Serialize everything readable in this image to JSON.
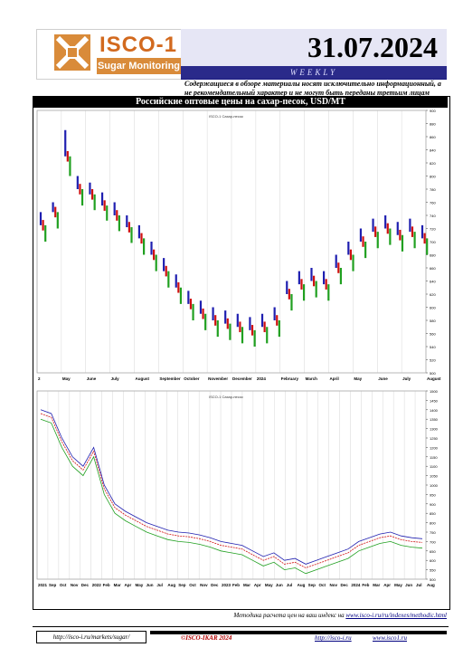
{
  "header": {
    "logo_text": "ISCO-1",
    "logo_sub": "Sugar Monitoring",
    "date": "31.07.2024",
    "weekly": "WEEKLY",
    "disclaimer": "Содержащиеся в обзоре материалы носят исключительно информационный, а не рекомендательный характер и не могут быть переданы третьим лицам"
  },
  "colors": {
    "high": "#1f1fb0",
    "mid": "#d01010",
    "low": "#20a020",
    "frame": "#000000"
  },
  "chart_data": [
    {
      "type": "candlestick",
      "title": "Российские оптовые цены на сахар-песок, USD/MT",
      "subtitle": "ISCO-1 Сахар-песок",
      "x_ticks": [
        "2",
        "May",
        "June",
        "July",
        "August",
        "September",
        "October",
        "November",
        "December",
        "2024",
        "February",
        "March",
        "April",
        "May",
        "June",
        "July",
        "August"
      ],
      "y_ticks": [
        "900",
        "880",
        "860",
        "840",
        "820",
        "800",
        "780",
        "760",
        "740",
        "720",
        "700",
        "680",
        "660",
        "640",
        "620",
        "600",
        "580",
        "560",
        "540",
        "520",
        "500"
      ],
      "ylim": [
        500,
        900
      ],
      "series": [
        {
          "name": "high",
          "values": [
            745,
            760,
            870,
            800,
            790,
            775,
            760,
            740,
            725,
            700,
            675,
            650,
            625,
            610,
            600,
            595,
            590,
            585,
            590,
            600,
            640,
            655,
            660,
            655,
            680,
            700,
            720,
            735,
            740,
            730,
            735,
            725
          ]
        },
        {
          "name": "mid",
          "values": [
            725,
            745,
            830,
            780,
            772,
            755,
            740,
            722,
            705,
            680,
            655,
            630,
            605,
            590,
            580,
            575,
            570,
            565,
            570,
            580,
            620,
            635,
            640,
            635,
            660,
            680,
            700,
            715,
            720,
            710,
            715,
            705
          ]
        },
        {
          "name": "low",
          "values": [
            700,
            720,
            800,
            755,
            748,
            732,
            716,
            698,
            680,
            655,
            630,
            605,
            580,
            565,
            555,
            550,
            545,
            540,
            545,
            555,
            595,
            610,
            615,
            610,
            635,
            655,
            675,
            690,
            695,
            685,
            690,
            680
          ]
        }
      ]
    },
    {
      "type": "line",
      "subtitle": "ISCO-1 Сахар-песок",
      "x_ticks": [
        "2021",
        "Sep",
        "Oct",
        "Nov",
        "Dec",
        "2022",
        "Feb",
        "Mar",
        "Apr",
        "May",
        "Jun",
        "Jul",
        "Aug",
        "Sep",
        "Oct",
        "Nov",
        "Dec",
        "2023",
        "Feb",
        "Mar",
        "Apr",
        "May",
        "Jun",
        "Jul",
        "Aug",
        "Sep",
        "Oct",
        "Nov",
        "Dec",
        "2024",
        "Feb",
        "Mar",
        "Apr",
        "May",
        "Jun",
        "Jul",
        "Aug"
      ],
      "y_ticks": [
        "1500",
        "1450",
        "1400",
        "1350",
        "1300",
        "1250",
        "1200",
        "1150",
        "1100",
        "1050",
        "1000",
        "950",
        "900",
        "850",
        "800",
        "750",
        "700",
        "650",
        "600",
        "550",
        "500"
      ],
      "ylim": [
        500,
        1500
      ],
      "series": [
        {
          "name": "high",
          "values": [
            1400,
            1380,
            1250,
            1150,
            1100,
            1200,
            1000,
            900,
            860,
            830,
            800,
            780,
            760,
            750,
            745,
            735,
            720,
            700,
            690,
            680,
            650,
            620,
            640,
            600,
            610,
            580,
            600,
            620,
            640,
            660,
            700,
            720,
            740,
            750,
            730,
            720,
            715
          ]
        },
        {
          "name": "mid",
          "values": [
            1380,
            1360,
            1230,
            1130,
            1080,
            1180,
            980,
            880,
            840,
            810,
            780,
            760,
            740,
            730,
            725,
            715,
            700,
            680,
            670,
            660,
            630,
            600,
            620,
            580,
            590,
            560,
            580,
            600,
            620,
            640,
            680,
            700,
            720,
            730,
            710,
            700,
            695
          ]
        },
        {
          "name": "low",
          "values": [
            1350,
            1330,
            1200,
            1100,
            1050,
            1150,
            950,
            850,
            810,
            780,
            750,
            730,
            710,
            700,
            695,
            685,
            670,
            650,
            640,
            630,
            600,
            570,
            590,
            550,
            560,
            530,
            550,
            570,
            590,
            610,
            650,
            670,
            690,
            700,
            680,
            670,
            665
          ]
        }
      ]
    }
  ],
  "footnote": {
    "text": "Методика расчета цен на ваш индекс на",
    "link": "www.isco-i.ru/ru/indexes/methodic.html"
  },
  "footer": {
    "left_link": "http://isco-i.ru/markets/sugar/",
    "center": "©ISCO-IKAR 2024",
    "right1": "http://isco-i.ru",
    "right2": "www.isco1.ru"
  }
}
